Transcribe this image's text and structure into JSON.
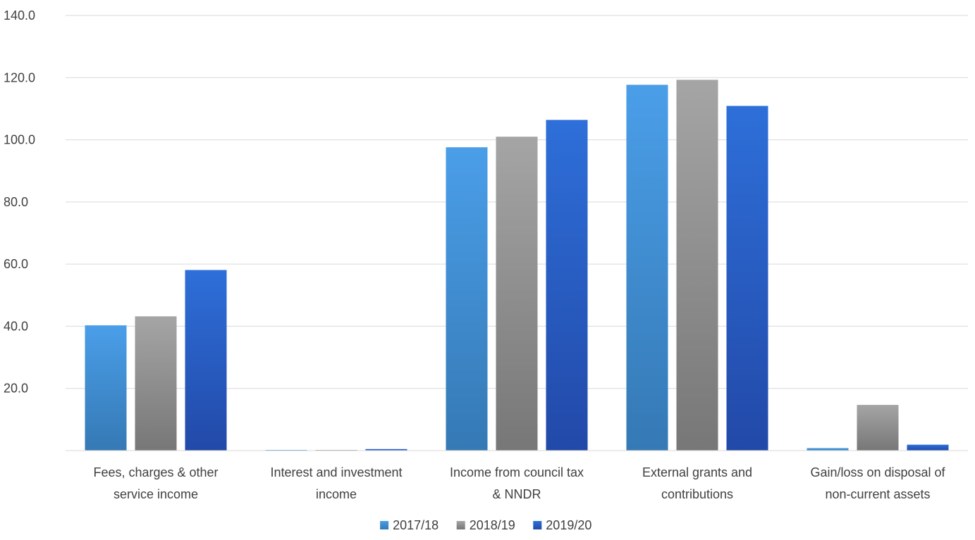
{
  "chart_data": {
    "type": "bar",
    "title": "",
    "xlabel": "",
    "ylabel": "",
    "ylim": [
      0,
      140
    ],
    "y_ticks": [
      {
        "value": 20,
        "label": "20.0"
      },
      {
        "value": 40,
        "label": "40.0"
      },
      {
        "value": 60,
        "label": "60.0"
      },
      {
        "value": 80,
        "label": "80.0"
      },
      {
        "value": 100,
        "label": "100.0"
      },
      {
        "value": 120,
        "label": "120.0"
      },
      {
        "value": 140,
        "label": "140.0"
      }
    ],
    "grid": true,
    "legend_position": "bottom",
    "categories": [
      [
        "Fees, charges & other",
        "service income"
      ],
      [
        "Interest and investment",
        "income"
      ],
      [
        "Income from council tax",
        "& NNDR"
      ],
      [
        "External grants and",
        "contributions"
      ],
      [
        "Gain/loss on disposal of",
        "non-current assets"
      ]
    ],
    "series": [
      {
        "name": "2017/18",
        "color_top": "#4A9EE8",
        "color_bottom": "#3579B5",
        "values": [
          40.3,
          0.2,
          97.6,
          117.7,
          0.8
        ]
      },
      {
        "name": "2018/19",
        "color_top": "#A5A5A5",
        "color_bottom": "#777777",
        "values": [
          43.2,
          0.2,
          101.0,
          119.3,
          14.7
        ]
      },
      {
        "name": "2019/20",
        "color_top": "#2E6FD9",
        "color_bottom": "#2249A8",
        "values": [
          58.1,
          0.5,
          106.4,
          110.9,
          1.9
        ]
      }
    ]
  }
}
